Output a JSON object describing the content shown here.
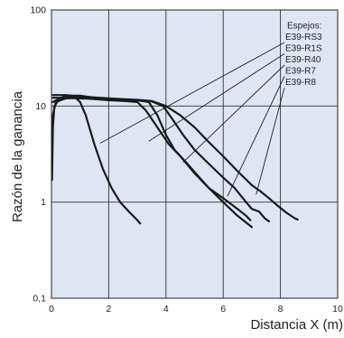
{
  "chart_data": {
    "type": "line",
    "xlabel": "Distancia X (m)",
    "ylabel": "Razón de la ganancia",
    "x_scale": "linear",
    "y_scale": "log",
    "xlim": [
      0,
      10
    ],
    "ylim": [
      0.1,
      100
    ],
    "x_ticks": [
      "0",
      "2",
      "4",
      "6",
      "8",
      "10"
    ],
    "y_ticks": [
      "0,1",
      "1",
      "10",
      "100"
    ],
    "grid": true,
    "legend_title": "Espejos:",
    "legend_placement": "top-right",
    "line_color": "#1a1a1a",
    "background_color": "#dfe6f2",
    "series": [
      {
        "name": "E39-RS3",
        "points": [
          [
            0.02,
            1.7
          ],
          [
            0.05,
            6
          ],
          [
            0.1,
            10
          ],
          [
            0.25,
            11.5
          ],
          [
            0.5,
            12.5
          ],
          [
            0.8,
            12.5
          ],
          [
            1.0,
            11
          ],
          [
            1.2,
            8
          ],
          [
            1.5,
            4
          ],
          [
            1.8,
            2.2
          ],
          [
            2.1,
            1.4
          ],
          [
            2.4,
            1.0
          ],
          [
            2.7,
            0.8
          ],
          [
            3.0,
            0.65
          ],
          [
            3.1,
            0.6
          ]
        ]
      },
      {
        "name": "E39-R1S",
        "points": [
          [
            0.02,
            4
          ],
          [
            0.05,
            8
          ],
          [
            0.15,
            11
          ],
          [
            0.5,
            12
          ],
          [
            1.0,
            12.2
          ],
          [
            1.5,
            11.8
          ],
          [
            2.0,
            11.5
          ],
          [
            2.5,
            11.3
          ],
          [
            3.0,
            11
          ],
          [
            3.3,
            9
          ],
          [
            3.7,
            6
          ],
          [
            4.1,
            4
          ],
          [
            4.5,
            3
          ],
          [
            5.0,
            2
          ],
          [
            5.5,
            1.4
          ],
          [
            6.0,
            1.0
          ],
          [
            6.5,
            0.72
          ],
          [
            7.0,
            0.55
          ]
        ]
      },
      {
        "name": "E39-R40",
        "points": [
          [
            0.05,
            11
          ],
          [
            0.5,
            12.8
          ],
          [
            1.0,
            12.8
          ],
          [
            1.5,
            12.2
          ],
          [
            2.0,
            11.8
          ],
          [
            2.5,
            11.6
          ],
          [
            3.0,
            11.5
          ],
          [
            3.4,
            11
          ],
          [
            3.7,
            8
          ],
          [
            4.0,
            5
          ],
          [
            4.3,
            3.5
          ],
          [
            4.7,
            2.6
          ],
          [
            5.1,
            1.9
          ],
          [
            5.5,
            1.4
          ],
          [
            6.0,
            1.1
          ],
          [
            6.5,
            0.85
          ],
          [
            6.8,
            0.72
          ],
          [
            6.95,
            0.65
          ]
        ]
      },
      {
        "name": "E39-R7",
        "points": [
          [
            0.05,
            12.2
          ],
          [
            0.5,
            12.2
          ],
          [
            1.0,
            12
          ],
          [
            2.0,
            11.8
          ],
          [
            3.0,
            11.5
          ],
          [
            3.5,
            11.2
          ],
          [
            3.9,
            10
          ],
          [
            4.2,
            7.5
          ],
          [
            4.6,
            5
          ],
          [
            5.0,
            3.5
          ],
          [
            5.5,
            2.5
          ],
          [
            6.0,
            1.8
          ],
          [
            6.4,
            1.4
          ],
          [
            6.8,
            1.0
          ],
          [
            7.0,
            0.85
          ],
          [
            7.25,
            0.8
          ],
          [
            7.45,
            0.68
          ],
          [
            7.6,
            0.63
          ]
        ]
      },
      {
        "name": "E39-R8",
        "points": [
          [
            0.05,
            13
          ],
          [
            0.5,
            13
          ],
          [
            1.0,
            12.6
          ],
          [
            2.0,
            12
          ],
          [
            3.0,
            11.6
          ],
          [
            3.5,
            11.3
          ],
          [
            4.0,
            10
          ],
          [
            4.5,
            8
          ],
          [
            5.0,
            6
          ],
          [
            5.5,
            4.2
          ],
          [
            6.0,
            3.0
          ],
          [
            6.5,
            2.1
          ],
          [
            7.0,
            1.5
          ],
          [
            7.3,
            1.3
          ],
          [
            7.6,
            1.1
          ],
          [
            7.9,
            0.92
          ],
          [
            8.2,
            0.78
          ],
          [
            8.5,
            0.68
          ],
          [
            8.6,
            0.66
          ]
        ]
      }
    ],
    "legend_anchor_points": [
      {
        "series": "E39-RS3",
        "x": 1.7,
        "y": 4.1
      },
      {
        "series": "E39-R1S",
        "x": 3.4,
        "y": 4.3
      },
      {
        "series": "E39-R40",
        "x": 4.6,
        "y": 2.6
      },
      {
        "series": "E39-R7",
        "x": 6.15,
        "y": 1.15
      },
      {
        "series": "E39-R8",
        "x": 7.15,
        "y": 1.2
      }
    ]
  }
}
